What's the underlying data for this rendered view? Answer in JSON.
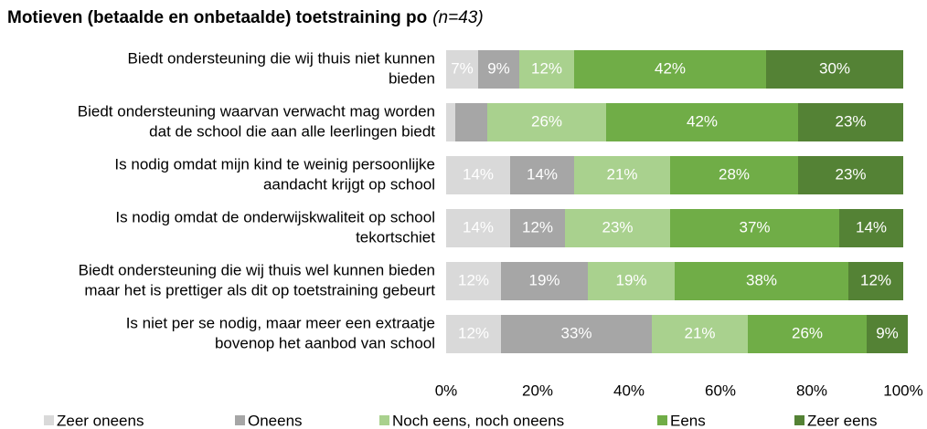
{
  "chart_data": {
    "type": "stacked-bar-horizontal",
    "title": "Motieven (betaalde en onbetaalde) toetstraining po",
    "subtitle": "(n=43)",
    "categories": [
      [
        "Biedt ondersteuning die wij thuis niet kunnen",
        "bieden"
      ],
      [
        "Biedt ondersteuning waarvan verwacht mag worden",
        "dat de school die aan alle leerlingen biedt"
      ],
      [
        "Is nodig omdat mijn kind te weinig persoonlijke",
        "aandacht krijgt op school"
      ],
      [
        "Is nodig omdat de onderwijskwaliteit op school",
        "tekortschiet"
      ],
      [
        "Biedt ondersteuning die wij thuis wel kunnen bieden",
        "maar het is prettiger als dit op toetstraining gebeurt"
      ],
      [
        "Is niet per se nodig, maar meer een extraatje",
        "bovenop het aanbod van school"
      ]
    ],
    "series": [
      {
        "name": "Zeer oneens",
        "color": "#d9d9d9",
        "values": [
          7,
          2,
          14,
          14,
          12,
          12
        ],
        "value_labels": [
          "7%",
          null,
          "14%",
          "14%",
          "12%",
          "12%"
        ]
      },
      {
        "name": "Oneens",
        "color": "#a6a6a6",
        "values": [
          9,
          7,
          14,
          12,
          19,
          33
        ],
        "value_labels": [
          "9%",
          null,
          "14%",
          "12%",
          "19%",
          "33%"
        ]
      },
      {
        "name": "Noch eens, noch oneens",
        "color": "#a9d18e",
        "values": [
          12,
          26,
          21,
          23,
          19,
          21
        ],
        "value_labels": [
          "12%",
          "26%",
          "21%",
          "23%",
          "19%",
          "21%"
        ]
      },
      {
        "name": "Eens",
        "color": "#70ad47",
        "values": [
          42,
          42,
          28,
          37,
          38,
          26
        ],
        "value_labels": [
          "42%",
          "42%",
          "28%",
          "37%",
          "38%",
          "26%"
        ]
      },
      {
        "name": "Zeer eens",
        "color": "#548235",
        "values": [
          30,
          23,
          23,
          14,
          12,
          9
        ],
        "value_labels": [
          "30%",
          "23%",
          "23%",
          "14%",
          "12%",
          "9%"
        ]
      }
    ],
    "xlim": [
      0,
      100
    ],
    "xticks": [
      {
        "value": 0,
        "label": "0%"
      },
      {
        "value": 20,
        "label": "20%"
      },
      {
        "value": 40,
        "label": "40%"
      },
      {
        "value": 60,
        "label": "60%"
      },
      {
        "value": 80,
        "label": "80%"
      },
      {
        "value": 100,
        "label": "100%"
      }
    ],
    "legend": "bottom"
  }
}
